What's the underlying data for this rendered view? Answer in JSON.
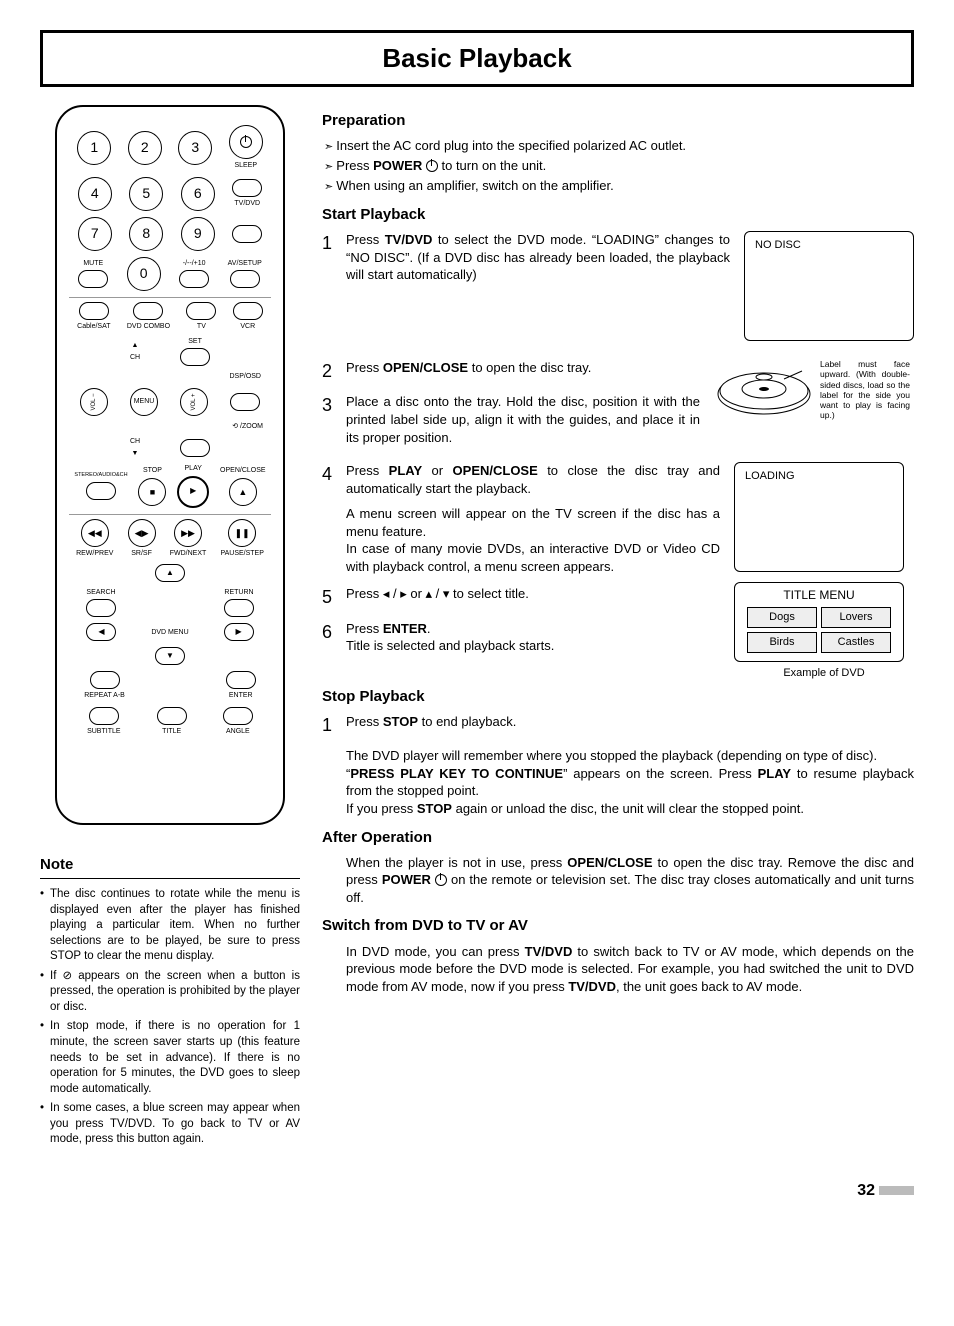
{
  "page_title": "Basic Playback",
  "page_number": "32",
  "remote": {
    "numrow1": [
      "1",
      "2",
      "3"
    ],
    "numrow2": [
      "4",
      "5",
      "6"
    ],
    "numrow3": [
      "7",
      "8",
      "9"
    ],
    "zero": "0",
    "sleep": "SLEEP",
    "tvdvd": "TV/DVD",
    "mute": "MUTE",
    "plus10": "-/--/+10",
    "avsetup": "AV/SETUP",
    "dev_row": [
      "Cable/SAT",
      "DVD COMBO",
      "TV",
      "VCR"
    ],
    "ch_up": "▲",
    "ch_label": "CH",
    "ch_dn": "▼",
    "set": "SET",
    "dsposd": "DSP/OSD",
    "vol_minus": "VOL −",
    "menu": "MENU",
    "vol_plus": "VOL +",
    "zoom_label": "⟲ /ZOOM",
    "stereo": "STEREO/AUDIO&CH",
    "stop": "STOP",
    "play": "PLAY",
    "openclose": "OPEN/CLOSE",
    "stop_sym": "■",
    "play_sym": "▶",
    "eject_sym": "▲",
    "rewprev": "REW/PREV",
    "srsf": "SR/SF",
    "fwdnext": "FWD/NEXT",
    "pausestep": "PAUSE/STEP",
    "rew_sym": "◀◀",
    "sr_sym": "◀▶",
    "fwd_sym": "▶▶",
    "pause_sym": "❚❚",
    "nav_up": "▲",
    "nav_dn": "▼",
    "nav_l": "◀",
    "nav_r": "▶",
    "search": "SEARCH",
    "return": "RETURN",
    "dvdmenu": "DVD MENU",
    "repeatab": "REPEAT A-B",
    "enter": "ENTER",
    "subtitle": "SUBTITLE",
    "title": "TITLE",
    "angle": "ANGLE"
  },
  "note": {
    "heading": "Note",
    "items": [
      "The disc continues to rotate while the menu is displayed even after the player has finished playing a particular item. When no further selections are to be played, be sure to press STOP to clear the menu display.",
      "If ⊘ appears on the screen when a button is pressed, the operation is prohibited by the player or disc.",
      "In stop mode, if there is no operation for 1 minute, the screen saver starts up (this feature needs to be set in advance). If there is no operation for 5 minutes, the DVD goes to sleep mode automatically.",
      "In some cases, a blue screen may appear when you press TV/DVD. To go back to TV or AV mode, press this button again."
    ]
  },
  "prep": {
    "heading": "Preparation",
    "items": [
      "Insert the AC cord plug into the specified polarized AC outlet.",
      "Press <b>POWER</b> <span class='pw-icon'></span> to turn on the unit.",
      "When using an amplifier, switch on the amplifier."
    ]
  },
  "start": {
    "heading": "Start Playback",
    "s1_a": "Press ",
    "s1_b": "TV/DVD",
    "s1_c": " to select the DVD mode. “LOADING” changes to “NO DISC”. (If a DVD disc has already been loaded, the playback will start automatically)",
    "s2_a": "Press ",
    "s2_b": "OPEN/CLOSE",
    "s2_c": " to open the disc tray.",
    "s3": "Place a disc onto the tray. Hold the disc, position it with the printed label side up, align it with the guides, and place it in its proper position.",
    "s4_a": "Press ",
    "s4_b1": "PLAY",
    "s4_mid": " or ",
    "s4_b2": "OPEN/CLOSE",
    "s4_c": " to close the disc tray and automatically start  the playback.",
    "s4_extra": "A menu screen will appear on the TV screen if the disc has a menu feature.\nIn case of many movie DVDs, an interactive DVD or Video CD with playback control, a menu screen appears.",
    "s5": "Press  ◂ / ▸  or  ▴ / ▾  to select title.",
    "s6_a": "Press ",
    "s6_b": "ENTER",
    "s6_c": ".",
    "s6_sub": "Title is selected and playback starts.",
    "nodisc": "NO DISC",
    "loading": "LOADING",
    "disc_caption": "Label must face upward. (With double-sided discs, load so the label for the side you want to play is facing up.)",
    "title_menu": "TITLE MENU",
    "tm_items": [
      "Dogs",
      "Lovers",
      "Birds",
      "Castles"
    ],
    "example": "Example of DVD"
  },
  "stop": {
    "heading": "Stop Playback",
    "s1_a": "Press ",
    "s1_b": "STOP",
    "s1_c": " to end playback.",
    "p1": "The DVD player will remember where you stopped the playback (depending on type of disc).",
    "p2_a": "“",
    "p2_b": "PRESS PLAY KEY TO CONTINUE",
    "p2_c": "” appears on the screen. Press ",
    "p2_d": "PLAY",
    "p2_e": "  to resume playback from the stopped point.",
    "p3_a": "If you press ",
    "p3_b": "STOP",
    "p3_c": " again or unload the disc, the unit will clear the stopped point."
  },
  "after": {
    "heading": "After Operation",
    "p_a": "When the player is not in use, press ",
    "p_b": "OPEN/CLOSE",
    "p_c": " to open the disc tray. Remove the disc and press ",
    "p_d": "POWER",
    "p_e": "  on the remote or television set. The disc tray closes automatically and unit turns off."
  },
  "switch": {
    "heading": "Switch from DVD to TV or AV",
    "p_a": "In DVD mode, you can press ",
    "p_b": "TV/DVD",
    "p_c": " to switch back to TV or AV mode, which depends on the previous mode before the DVD mode is selected. For example, you had switched the unit to DVD mode from AV mode, now if you press ",
    "p_d": "TV/DVD",
    "p_e": ", the unit goes back to AV mode."
  }
}
